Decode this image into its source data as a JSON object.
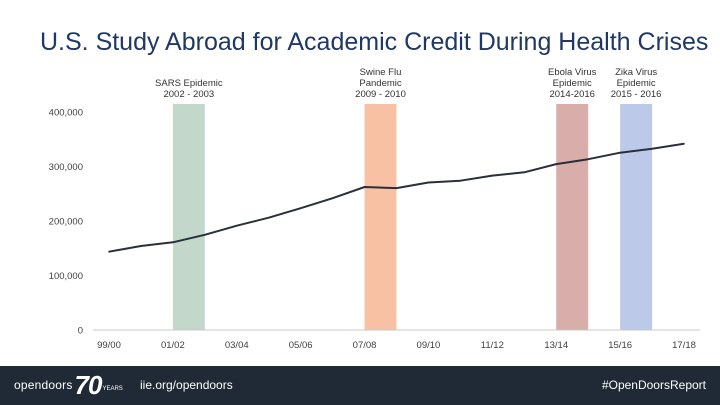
{
  "chart_data": {
    "type": "line",
    "title": "U.S. Study Abroad for Academic Credit During Health Crises",
    "categories": [
      "99/00",
      "00/01",
      "01/02",
      "02/03",
      "03/04",
      "04/05",
      "05/06",
      "06/07",
      "07/08",
      "08/09",
      "09/10",
      "10/11",
      "11/12",
      "12/13",
      "13/14",
      "14/15",
      "15/16",
      "16/17",
      "17/18"
    ],
    "tick_labels": [
      "99/00",
      "01/02",
      "03/04",
      "05/06",
      "07/08",
      "09/10",
      "11/12",
      "13/14",
      "15/16",
      "17/18"
    ],
    "series": [
      {
        "values": [
          143590,
          154168,
          160920,
          174629,
          191321,
          205983,
          223534,
          241791,
          262416,
          260327,
          270604,
          273996,
          283332,
          289408,
          304467,
          313415,
          325339,
          332727,
          341751
        ]
      }
    ],
    "ylim": [
      0,
      400000
    ],
    "yticks": [
      0,
      100000,
      200000,
      300000,
      400000
    ],
    "ytick_labels": [
      "0",
      "100,000",
      "200,000",
      "300,000",
      "400,000"
    ],
    "grid": false,
    "line_color": "#2b2f3a",
    "bands": [
      {
        "lines": [
          "SARS Epidemic",
          "2002 - 2003"
        ],
        "from": "01/02",
        "to": "02/03",
        "color": "#a9c7b3"
      },
      {
        "lines": [
          "Swine Flu",
          "Pandemic",
          "2009 - 2010"
        ],
        "from": "07/08",
        "to": "08/09",
        "color": "#f7a77c"
      },
      {
        "lines": [
          "Ebola Virus",
          "Epidemic",
          "2014-2016"
        ],
        "from": "13/14",
        "to": "14/15",
        "color": "#c98a86"
      },
      {
        "lines": [
          "Zika Virus",
          "Epidemic",
          "2015 - 2016"
        ],
        "from": "15/16",
        "to": "16/17",
        "color": "#9fb2df"
      }
    ]
  },
  "footer": {
    "logo_text": "opendoors",
    "logo_number": "70",
    "logo_years": "YEARS",
    "website": "iie.org/opendoors",
    "hashtag": "#OpenDoorsReport"
  }
}
